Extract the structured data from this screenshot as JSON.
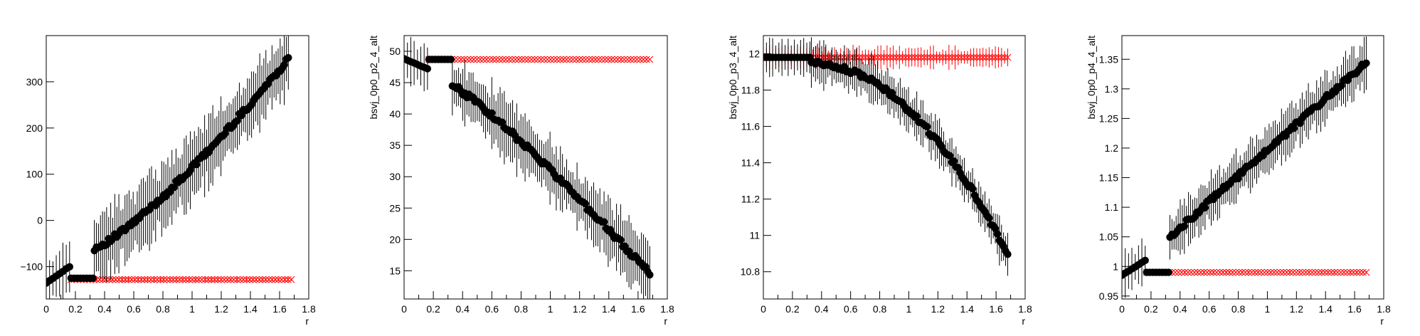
{
  "chart_data": [
    {
      "type": "scatter",
      "xlabel": "r",
      "ylabel": "",
      "xlim": [
        0,
        1.8
      ],
      "ylim": [
        -170,
        400
      ],
      "xticks": [
        0,
        0.2,
        0.4,
        0.6,
        0.8,
        1,
        1.2,
        1.4,
        1.6,
        1.8
      ],
      "xtick_labels": [
        "0",
        "0.2",
        "0.4",
        "0.6",
        "0.8",
        "1",
        "1.2",
        "1.4",
        "1.6",
        "1.8"
      ],
      "yticks": [
        -100,
        0,
        100,
        200,
        300
      ],
      "ytick_labels": [
        "−100",
        "0",
        "100",
        "200",
        "300"
      ],
      "grid": false,
      "series": [
        {
          "marker": "circle",
          "color": "#000000",
          "segments": [
            {
              "x0": 0.0,
              "x1": 0.16,
              "y0": -135,
              "y1": -100,
              "n": 8,
              "err": 45
            },
            {
              "x0": 0.17,
              "x1": 0.32,
              "y0": -125,
              "y1": -125,
              "n": 8,
              "err": 3
            },
            {
              "x0": 0.33,
              "x1": 1.66,
              "y0": -60,
              "y1": 350,
              "n": 96,
              "err": 65,
              "curve": 1.25
            }
          ]
        },
        {
          "marker": "x",
          "color": "#ff0000",
          "segments": [
            {
              "x0": 0.17,
              "x1": 1.68,
              "y0": -128,
              "y1": -128,
              "n": 70,
              "err": 4
            }
          ]
        }
      ]
    },
    {
      "type": "scatter",
      "xlabel": "r",
      "ylabel": "bsvj_0p0_p2_4_alt",
      "xlim": [
        0,
        1.8
      ],
      "ylim": [
        10.5,
        52.5
      ],
      "xticks": [
        0,
        0.2,
        0.4,
        0.6,
        0.8,
        1,
        1.2,
        1.4,
        1.6,
        1.8
      ],
      "xtick_labels": [
        "0",
        "0.2",
        "0.4",
        "0.6",
        "0.8",
        "1",
        "1.2",
        "1.4",
        "1.6",
        "1.8"
      ],
      "yticks": [
        15,
        20,
        25,
        30,
        35,
        40,
        45,
        50
      ],
      "ytick_labels": [
        "15",
        "20",
        "25",
        "30",
        "35",
        "40",
        "45",
        "50"
      ],
      "grid": false,
      "series": [
        {
          "marker": "circle",
          "color": "#000000",
          "segments": [
            {
              "x0": 0.0,
              "x1": 0.16,
              "y0": 48.8,
              "y1": 47.2,
              "n": 8,
              "err": 3.5
            },
            {
              "x0": 0.17,
              "x1": 0.32,
              "y0": 48.7,
              "y1": 48.7,
              "n": 8,
              "err": 0.2
            },
            {
              "x0": 0.33,
              "x1": 1.68,
              "y0": 44.5,
              "y1": 14.5,
              "n": 96,
              "err": 4.2,
              "curve": 1.15
            }
          ]
        },
        {
          "marker": "x",
          "color": "#ff0000",
          "segments": [
            {
              "x0": 0.17,
              "x1": 1.68,
              "y0": 48.7,
              "y1": 48.7,
              "n": 70,
              "err": 0.15
            }
          ]
        }
      ]
    },
    {
      "type": "scatter",
      "xlabel": "r",
      "ylabel": "bsvj_0p0_p3_4_alt",
      "xlim": [
        0,
        1.8
      ],
      "ylim": [
        10.65,
        12.1
      ],
      "xticks": [
        0,
        0.2,
        0.4,
        0.6,
        0.8,
        1,
        1.2,
        1.4,
        1.6,
        1.8
      ],
      "xtick_labels": [
        "0",
        "0.2",
        "0.4",
        "0.6",
        "0.8",
        "1",
        "1.2",
        "1.4",
        "1.6",
        "1.8"
      ],
      "yticks": [
        10.8,
        11,
        11.2,
        11.4,
        11.6,
        11.8,
        12
      ],
      "ytick_labels": [
        "10.8",
        "11",
        "11.2",
        "11.4",
        "11.6",
        "11.8",
        "12"
      ],
      "grid": false,
      "series": [
        {
          "marker": "circle",
          "color": "#000000",
          "segments": [
            {
              "x0": 0.0,
              "x1": 0.32,
              "y0": 11.98,
              "y1": 11.98,
              "n": 16,
              "err": 0.08
            },
            {
              "x0": 0.33,
              "x1": 1.68,
              "y0": 11.95,
              "y1": 10.9,
              "n": 96,
              "err": 0.1,
              "curve": 2.0
            }
          ]
        },
        {
          "marker": "x",
          "color": "#ff0000",
          "segments": [
            {
              "x0": 0.0,
              "x1": 1.68,
              "y0": 11.98,
              "y1": 11.98,
              "n": 80,
              "err": 0.05
            }
          ]
        }
      ]
    },
    {
      "type": "scatter",
      "xlabel": "r",
      "ylabel": "bsvj_0p0_p4_4_alt",
      "xlim": [
        0,
        1.8
      ],
      "ylim": [
        0.945,
        1.39
      ],
      "xticks": [
        0,
        0.2,
        0.4,
        0.6,
        0.8,
        1,
        1.2,
        1.4,
        1.6,
        1.8
      ],
      "xtick_labels": [
        "0",
        "0.2",
        "0.4",
        "0.6",
        "0.8",
        "1",
        "1.2",
        "1.4",
        "1.6",
        "1.8"
      ],
      "yticks": [
        0.95,
        1,
        1.05,
        1.1,
        1.15,
        1.2,
        1.25,
        1.3,
        1.35
      ],
      "ytick_labels": [
        "0.95",
        "1",
        "1.05",
        "1.1",
        "1.15",
        "1.2",
        "1.25",
        "1.3",
        "1.35"
      ],
      "grid": false,
      "series": [
        {
          "marker": "circle",
          "color": "#000000",
          "segments": [
            {
              "x0": 0.0,
              "x1": 0.16,
              "y0": 0.985,
              "y1": 1.01,
              "n": 8,
              "err": 0.03
            },
            {
              "x0": 0.17,
              "x1": 0.32,
              "y0": 0.99,
              "y1": 0.99,
              "n": 8,
              "err": 0.002
            },
            {
              "x0": 0.33,
              "x1": 1.68,
              "y0": 1.05,
              "y1": 1.345,
              "n": 96,
              "err": 0.035,
              "curve": 1.0
            }
          ]
        },
        {
          "marker": "x",
          "color": "#ff0000",
          "segments": [
            {
              "x0": 0.17,
              "x1": 1.68,
              "y0": 0.99,
              "y1": 0.99,
              "n": 70,
              "err": 0.002
            }
          ]
        }
      ]
    }
  ]
}
